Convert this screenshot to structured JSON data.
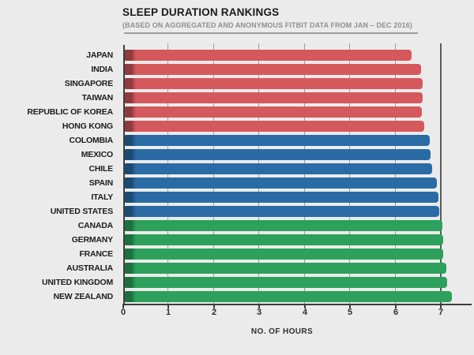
{
  "header": {
    "title": "SLEEP DURATION RANKINGS",
    "subtitle": "(BASED ON AGGREGATED AND ANONYMOUS FITBIT DATA FROM JAN – DEC 2016)"
  },
  "chart_data": {
    "type": "bar",
    "orientation": "horizontal",
    "title": "SLEEP DURATION RANKINGS",
    "subtitle": "(BASED ON AGGREGATED AND ANONYMOUS FITBIT DATA FROM JAN – DEC 2016)",
    "xlabel": "NO. OF HOURS",
    "xlim": [
      0,
      7.68
    ],
    "xticks": [
      0,
      1,
      2,
      3,
      4,
      5,
      6,
      7
    ],
    "grid": true,
    "legend": "none",
    "cap_width_hours": 0.25,
    "palette": {
      "red": {
        "fill": "#d5595c",
        "cap": "#8e3a3e"
      },
      "blue": {
        "fill": "#2a6ba5",
        "cap": "#1c4a72"
      },
      "green": {
        "fill": "#2da05c",
        "cap": "#1d7040"
      }
    },
    "items": [
      {
        "label": "JAPAN",
        "hours": 6.35,
        "color": "red"
      },
      {
        "label": "INDIA",
        "hours": 6.57,
        "color": "red"
      },
      {
        "label": "SINGAPORE",
        "hours": 6.6,
        "color": "red"
      },
      {
        "label": "TAIWAN",
        "hours": 6.6,
        "color": "red"
      },
      {
        "label": "REPUBLIC OF KOREA",
        "hours": 6.58,
        "color": "red"
      },
      {
        "label": "HONG KONG",
        "hours": 6.63,
        "color": "red"
      },
      {
        "label": "COLOMBIA",
        "hours": 6.76,
        "color": "blue"
      },
      {
        "label": "MEXICO",
        "hours": 6.78,
        "color": "blue"
      },
      {
        "label": "CHILE",
        "hours": 6.81,
        "color": "blue"
      },
      {
        "label": "SPAIN",
        "hours": 6.91,
        "color": "blue"
      },
      {
        "label": "ITALY",
        "hours": 6.94,
        "color": "blue"
      },
      {
        "label": "UNITED STATES",
        "hours": 6.97,
        "color": "blue"
      },
      {
        "label": "CANADA",
        "hours": 7.03,
        "color": "green"
      },
      {
        "label": "GERMANY",
        "hours": 7.05,
        "color": "green"
      },
      {
        "label": "FRANCE",
        "hours": 7.06,
        "color": "green"
      },
      {
        "label": "AUSTRALIA",
        "hours": 7.12,
        "color": "green"
      },
      {
        "label": "UNITED KINGDOM",
        "hours": 7.14,
        "color": "green"
      },
      {
        "label": "NEW ZEALAND",
        "hours": 7.24,
        "color": "green"
      }
    ]
  }
}
